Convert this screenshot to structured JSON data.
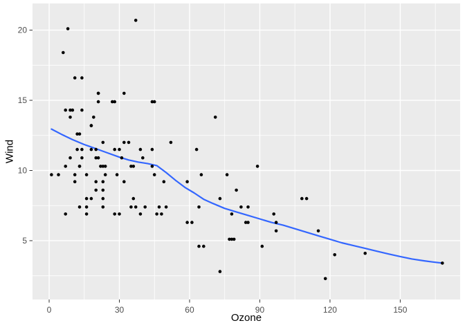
{
  "chart_data": {
    "type": "scatter",
    "title": "",
    "xlabel": "Ozone",
    "ylabel": "Wind",
    "xlim": [
      -7.1,
      175.6
    ],
    "ylim": [
      0.81,
      21.9
    ],
    "x_major_ticks": [
      0,
      30,
      60,
      90,
      120,
      150
    ],
    "x_minor_ticks": [
      15,
      45,
      75,
      105,
      135,
      165
    ],
    "y_major_ticks": [
      5,
      10,
      15,
      20
    ],
    "y_minor_ticks": [
      2.5,
      7.5,
      12.5,
      17.5
    ],
    "grid": true,
    "legend": "none",
    "colors": {
      "panel_background": "#EBEBEB",
      "grid_major": "#FFFFFF",
      "grid_minor": "#FFFFFF",
      "point": "#000000",
      "smooth_line": "#3366FF",
      "tick_mark": "#333333",
      "tick_label": "#4D4D4D",
      "axis_title": "#000000",
      "outer_background": "#FFFFFF"
    },
    "series": [
      {
        "name": "points",
        "geom": "point",
        "points": [
          [
            41,
            7.4
          ],
          [
            36,
            8
          ],
          [
            12,
            12.6
          ],
          [
            18,
            11.5
          ],
          [
            28,
            14.9
          ],
          [
            23,
            8.6
          ],
          [
            19,
            13.8
          ],
          [
            8,
            20.1
          ],
          [
            7,
            6.9
          ],
          [
            16,
            9.7
          ],
          [
            11,
            9.2
          ],
          [
            14,
            10.9
          ],
          [
            18,
            13.2
          ],
          [
            14,
            11.5
          ],
          [
            34,
            12
          ],
          [
            6,
            18.4
          ],
          [
            30,
            11.5
          ],
          [
            11,
            9.7
          ],
          [
            1,
            9.7
          ],
          [
            11,
            16.6
          ],
          [
            4,
            9.7
          ],
          [
            32,
            12
          ],
          [
            23,
            12
          ],
          [
            45,
            14.9
          ],
          [
            115,
            5.7
          ],
          [
            37,
            7.4
          ],
          [
            29,
            9.7
          ],
          [
            71,
            13.8
          ],
          [
            39,
            11.5
          ],
          [
            23,
            8
          ],
          [
            21,
            14.9
          ],
          [
            37,
            20.7
          ],
          [
            20,
            9.2
          ],
          [
            12,
            11.5
          ],
          [
            13,
            10.3
          ],
          [
            135,
            4.1
          ],
          [
            49,
            9.2
          ],
          [
            32,
            9.2
          ],
          [
            64,
            4.6
          ],
          [
            40,
            10.9
          ],
          [
            77,
            5.1
          ],
          [
            97,
            6.3
          ],
          [
            97,
            5.7
          ],
          [
            85,
            7.4
          ],
          [
            10,
            14.3
          ],
          [
            27,
            14.9
          ],
          [
            7,
            14.3
          ],
          [
            48,
            6.9
          ],
          [
            35,
            10.3
          ],
          [
            61,
            6.3
          ],
          [
            79,
            5.1
          ],
          [
            63,
            11.5
          ],
          [
            16,
            6.9
          ],
          [
            80,
            8.6
          ],
          [
            108,
            8
          ],
          [
            20,
            8.6
          ],
          [
            52,
            12
          ],
          [
            82,
            7.4
          ],
          [
            50,
            7.4
          ],
          [
            64,
            7.4
          ],
          [
            59,
            9.2
          ],
          [
            39,
            6.9
          ],
          [
            9,
            13.8
          ],
          [
            16,
            7.4
          ],
          [
            78,
            6.9
          ],
          [
            35,
            7.4
          ],
          [
            66,
            4.6
          ],
          [
            122,
            4
          ],
          [
            89,
            10.3
          ],
          [
            110,
            8
          ],
          [
            44,
            11.5
          ],
          [
            28,
            11.5
          ],
          [
            65,
            9.7
          ],
          [
            22,
            10.3
          ],
          [
            59,
            6.3
          ],
          [
            23,
            7.4
          ],
          [
            31,
            10.9
          ],
          [
            44,
            10.3
          ],
          [
            21,
            15.5
          ],
          [
            9,
            14.3
          ],
          [
            45,
            9.7
          ],
          [
            168,
            3.4
          ],
          [
            73,
            8
          ],
          [
            76,
            9.7
          ],
          [
            118,
            2.3
          ],
          [
            84,
            6.3
          ],
          [
            85,
            6.3
          ],
          [
            96,
            6.9
          ],
          [
            78,
            5.1
          ],
          [
            73,
            2.8
          ],
          [
            91,
            4.6
          ],
          [
            47,
            7.4
          ],
          [
            32,
            15.5
          ],
          [
            20,
            10.9
          ],
          [
            23,
            10.3
          ],
          [
            21,
            10.9
          ],
          [
            24,
            9.7
          ],
          [
            44,
            14.9
          ],
          [
            21,
            15.5
          ],
          [
            28,
            6.9
          ],
          [
            9,
            10.9
          ],
          [
            13,
            7.4
          ],
          [
            46,
            6.9
          ],
          [
            18,
            13.2
          ],
          [
            13,
            10.3
          ],
          [
            24,
            10.3
          ],
          [
            16,
            8
          ],
          [
            13,
            12.6
          ],
          [
            23,
            9.2
          ],
          [
            36,
            10.3
          ],
          [
            7,
            10.3
          ],
          [
            14,
            16.6
          ],
          [
            30,
            6.9
          ],
          [
            14,
            14.3
          ],
          [
            18,
            8
          ],
          [
            20,
            11.5
          ]
        ]
      },
      {
        "name": "loess-smooth",
        "geom": "line",
        "points": [
          [
            1,
            12.95
          ],
          [
            5,
            12.6
          ],
          [
            10,
            12.2
          ],
          [
            15,
            11.85
          ],
          [
            20,
            11.55
          ],
          [
            25,
            11.25
          ],
          [
            30,
            10.95
          ],
          [
            34,
            10.75
          ],
          [
            38,
            10.6
          ],
          [
            42,
            10.5
          ],
          [
            46,
            10.35
          ],
          [
            50,
            9.85
          ],
          [
            54,
            9.3
          ],
          [
            58,
            8.8
          ],
          [
            62,
            8.4
          ],
          [
            66,
            7.95
          ],
          [
            70,
            7.65
          ],
          [
            75,
            7.3
          ],
          [
            80,
            7.05
          ],
          [
            85,
            6.8
          ],
          [
            90,
            6.55
          ],
          [
            95,
            6.3
          ],
          [
            100,
            6.1
          ],
          [
            105,
            5.85
          ],
          [
            110,
            5.6
          ],
          [
            115,
            5.35
          ],
          [
            120,
            5.1
          ],
          [
            125,
            4.85
          ],
          [
            130,
            4.65
          ],
          [
            135,
            4.45
          ],
          [
            140,
            4.25
          ],
          [
            145,
            4.05
          ],
          [
            150,
            3.87
          ],
          [
            155,
            3.7
          ],
          [
            160,
            3.57
          ],
          [
            164,
            3.48
          ],
          [
            168,
            3.4
          ]
        ]
      }
    ]
  }
}
